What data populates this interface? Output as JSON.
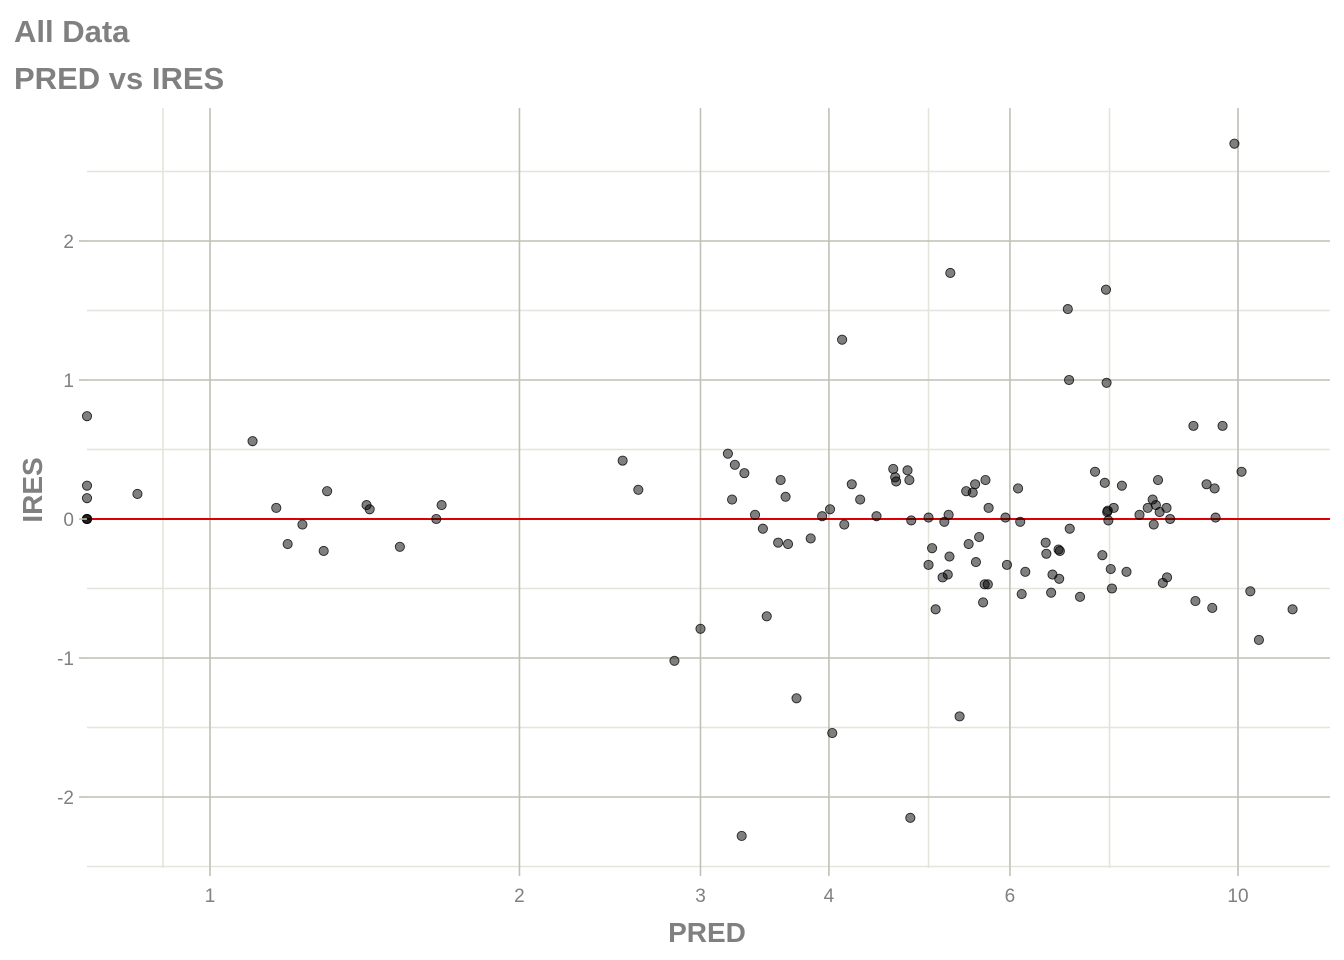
{
  "header": {
    "title": "All Data",
    "subtitle": "PRED vs IRES"
  },
  "chart_data": {
    "type": "scatter",
    "title": "All Data",
    "subtitle": "PRED vs IRES",
    "xlabel": "PRED",
    "ylabel": "IRES",
    "x_scale": "log10",
    "xlim": [
      0.73,
      12.3
    ],
    "ylim": [
      -2.5,
      2.8
    ],
    "x_major_ticks": [
      1,
      2,
      3,
      4,
      6,
      10
    ],
    "x_minor_ticks": [
      0.75,
      0.9,
      5,
      7.5
    ],
    "y_ticks": [
      -2,
      -1,
      0,
      1,
      2
    ],
    "y_tick_labels": [
      "-2",
      "-1",
      "0",
      "1",
      "2"
    ],
    "x_tick_labels": [
      "1",
      "2",
      "3",
      "4",
      "6",
      "10"
    ],
    "grid": true,
    "reference_line": {
      "y": 0,
      "color": "#dd0000"
    },
    "point_color": "#000000",
    "point_opacity": 0.5,
    "points": [
      {
        "x": 0.73,
        "y": 0.74
      },
      {
        "x": 0.73,
        "y": 0.24
      },
      {
        "x": 0.73,
        "y": 0.15
      },
      {
        "x": 0.73,
        "y": 0.0
      },
      {
        "x": 0.73,
        "y": 0.0
      },
      {
        "x": 0.73,
        "y": 0.0
      },
      {
        "x": 0.85,
        "y": 0.18
      },
      {
        "x": 1.1,
        "y": 0.56
      },
      {
        "x": 1.16,
        "y": 0.08
      },
      {
        "x": 1.19,
        "y": -0.18
      },
      {
        "x": 1.23,
        "y": -0.04
      },
      {
        "x": 1.29,
        "y": -0.23
      },
      {
        "x": 1.3,
        "y": 0.2
      },
      {
        "x": 1.42,
        "y": 0.1
      },
      {
        "x": 1.43,
        "y": 0.07
      },
      {
        "x": 1.53,
        "y": -0.2
      },
      {
        "x": 1.66,
        "y": 0.0
      },
      {
        "x": 1.68,
        "y": 0.1
      },
      {
        "x": 2.52,
        "y": 0.42
      },
      {
        "x": 2.61,
        "y": 0.21
      },
      {
        "x": 2.83,
        "y": -1.02
      },
      {
        "x": 3.0,
        "y": -0.79
      },
      {
        "x": 3.19,
        "y": 0.47
      },
      {
        "x": 3.22,
        "y": 0.14
      },
      {
        "x": 3.24,
        "y": 0.39
      },
      {
        "x": 3.29,
        "y": -2.28
      },
      {
        "x": 3.31,
        "y": 0.33
      },
      {
        "x": 3.39,
        "y": 0.03
      },
      {
        "x": 3.45,
        "y": -0.07
      },
      {
        "x": 3.48,
        "y": -0.7
      },
      {
        "x": 3.57,
        "y": -0.17
      },
      {
        "x": 3.59,
        "y": 0.28
      },
      {
        "x": 3.63,
        "y": 0.16
      },
      {
        "x": 3.65,
        "y": -0.18
      },
      {
        "x": 3.72,
        "y": -1.29
      },
      {
        "x": 3.84,
        "y": -0.14
      },
      {
        "x": 3.94,
        "y": 0.02
      },
      {
        "x": 4.01,
        "y": 0.07
      },
      {
        "x": 4.03,
        "y": -1.54
      },
      {
        "x": 4.12,
        "y": 1.29
      },
      {
        "x": 4.14,
        "y": -0.04
      },
      {
        "x": 4.21,
        "y": 0.25
      },
      {
        "x": 4.29,
        "y": 0.14
      },
      {
        "x": 4.45,
        "y": 0.02
      },
      {
        "x": 4.62,
        "y": 0.36
      },
      {
        "x": 4.64,
        "y": 0.3
      },
      {
        "x": 4.65,
        "y": 0.27
      },
      {
        "x": 4.77,
        "y": 0.35
      },
      {
        "x": 4.79,
        "y": 0.28
      },
      {
        "x": 4.8,
        "y": -2.15
      },
      {
        "x": 4.81,
        "y": -0.01
      },
      {
        "x": 5.0,
        "y": 0.01
      },
      {
        "x": 5.0,
        "y": -0.33
      },
      {
        "x": 5.04,
        "y": -0.21
      },
      {
        "x": 5.08,
        "y": -0.65
      },
      {
        "x": 5.16,
        "y": -0.42
      },
      {
        "x": 5.18,
        "y": -0.02
      },
      {
        "x": 5.22,
        "y": -0.4
      },
      {
        "x": 5.23,
        "y": 0.03
      },
      {
        "x": 5.24,
        "y": -0.27
      },
      {
        "x": 5.25,
        "y": 1.77
      },
      {
        "x": 5.36,
        "y": -1.42
      },
      {
        "x": 5.44,
        "y": 0.2
      },
      {
        "x": 5.47,
        "y": -0.18
      },
      {
        "x": 5.52,
        "y": 0.19
      },
      {
        "x": 5.55,
        "y": 0.25
      },
      {
        "x": 5.56,
        "y": -0.31
      },
      {
        "x": 5.6,
        "y": -0.13
      },
      {
        "x": 5.65,
        "y": -0.6
      },
      {
        "x": 5.67,
        "y": -0.47
      },
      {
        "x": 5.68,
        "y": 0.28
      },
      {
        "x": 5.71,
        "y": -0.47
      },
      {
        "x": 5.72,
        "y": 0.08
      },
      {
        "x": 5.94,
        "y": 0.01
      },
      {
        "x": 5.96,
        "y": -0.33
      },
      {
        "x": 6.11,
        "y": 0.22
      },
      {
        "x": 6.14,
        "y": -0.02
      },
      {
        "x": 6.16,
        "y": -0.54
      },
      {
        "x": 6.21,
        "y": -0.38
      },
      {
        "x": 6.5,
        "y": -0.17
      },
      {
        "x": 6.51,
        "y": -0.25
      },
      {
        "x": 6.58,
        "y": -0.53
      },
      {
        "x": 6.6,
        "y": -0.4
      },
      {
        "x": 6.69,
        "y": -0.22
      },
      {
        "x": 6.7,
        "y": -0.43
      },
      {
        "x": 6.71,
        "y": -0.23
      },
      {
        "x": 6.83,
        "y": 1.51
      },
      {
        "x": 6.85,
        "y": 1.0
      },
      {
        "x": 6.86,
        "y": -0.07
      },
      {
        "x": 7.02,
        "y": -0.56
      },
      {
        "x": 7.26,
        "y": 0.34
      },
      {
        "x": 7.38,
        "y": -0.26
      },
      {
        "x": 7.42,
        "y": 0.26
      },
      {
        "x": 7.44,
        "y": 1.65
      },
      {
        "x": 7.45,
        "y": 0.98
      },
      {
        "x": 7.46,
        "y": 0.05
      },
      {
        "x": 7.47,
        "y": 0.06
      },
      {
        "x": 7.48,
        "y": -0.01
      },
      {
        "x": 7.52,
        "y": -0.36
      },
      {
        "x": 7.54,
        "y": -0.5
      },
      {
        "x": 7.57,
        "y": 0.08
      },
      {
        "x": 7.71,
        "y": 0.24
      },
      {
        "x": 7.79,
        "y": -0.38
      },
      {
        "x": 8.02,
        "y": 0.03
      },
      {
        "x": 8.17,
        "y": 0.08
      },
      {
        "x": 8.26,
        "y": 0.14
      },
      {
        "x": 8.28,
        "y": -0.04
      },
      {
        "x": 8.32,
        "y": 0.1
      },
      {
        "x": 8.36,
        "y": 0.28
      },
      {
        "x": 8.39,
        "y": 0.05
      },
      {
        "x": 8.45,
        "y": -0.46
      },
      {
        "x": 8.52,
        "y": 0.08
      },
      {
        "x": 8.53,
        "y": -0.42
      },
      {
        "x": 8.59,
        "y": 0.0
      },
      {
        "x": 9.05,
        "y": 0.67
      },
      {
        "x": 9.09,
        "y": -0.59
      },
      {
        "x": 9.32,
        "y": 0.25
      },
      {
        "x": 9.44,
        "y": -0.64
      },
      {
        "x": 9.49,
        "y": 0.22
      },
      {
        "x": 9.51,
        "y": 0.01
      },
      {
        "x": 9.66,
        "y": 0.67
      },
      {
        "x": 9.92,
        "y": 2.7
      },
      {
        "x": 10.08,
        "y": 0.34
      },
      {
        "x": 10.28,
        "y": -0.52
      },
      {
        "x": 10.48,
        "y": -0.87
      },
      {
        "x": 11.3,
        "y": -0.65
      }
    ]
  },
  "colors": {
    "background": "#ffffff",
    "grid_major": "#c0c0b6",
    "grid_minor": "#e4e4da",
    "text": "#808080",
    "reference_line": "#dd0000"
  }
}
